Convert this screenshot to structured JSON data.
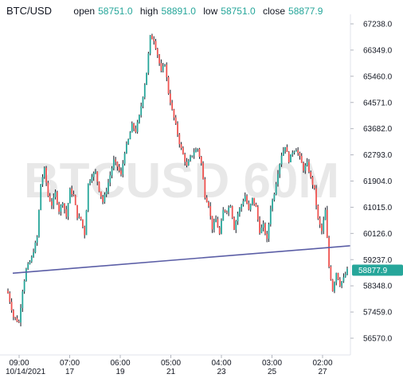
{
  "symbol": "BTC/USD",
  "ohlc": {
    "open_label": "open",
    "open": "58751.0",
    "high_label": "high",
    "high": "58891.0",
    "low_label": "low",
    "low": "58751.0",
    "close_label": "close",
    "close": "58877.9"
  },
  "watermark": "BTCUSD 60M",
  "colors": {
    "up": "#26a69a",
    "down": "#ef5350",
    "bar": "#131722",
    "trendline": "#5b5ea6",
    "price_tag": "#26a69a"
  },
  "chart_data": {
    "type": "candlestick",
    "y_ticks": [
      67238.0,
      66349.0,
      65460.0,
      64571.0,
      63682.0,
      62793.0,
      61904.0,
      61015.0,
      60126.0,
      59237.0,
      58348.0,
      57459.0,
      56570.0
    ],
    "ylim": [
      56570.0,
      67238.0
    ],
    "x_ticks": [
      {
        "time": "09:00",
        "date": "10/14/2021"
      },
      {
        "time": "07:00",
        "date": "17"
      },
      {
        "time": "06:00",
        "date": "19"
      },
      {
        "time": "05:00",
        "date": "21"
      },
      {
        "time": "04:00",
        "date": "23"
      },
      {
        "time": "03:00",
        "date": "25"
      },
      {
        "time": "02:00",
        "date": "27"
      }
    ],
    "last_price": "58877.9",
    "price_path": [
      [
        0,
        58100
      ],
      [
        3,
        57300
      ],
      [
        6,
        57100
      ],
      [
        8,
        58200
      ],
      [
        10,
        58900
      ],
      [
        13,
        59300
      ],
      [
        16,
        60000
      ],
      [
        18,
        61800
      ],
      [
        20,
        62300
      ],
      [
        22,
        61400
      ],
      [
        24,
        61100
      ],
      [
        26,
        61500
      ],
      [
        28,
        60900
      ],
      [
        30,
        61200
      ],
      [
        32,
        60700
      ],
      [
        34,
        61600
      ],
      [
        36,
        61400
      ],
      [
        38,
        60700
      ],
      [
        40,
        60600
      ],
      [
        42,
        60100
      ],
      [
        44,
        61800
      ],
      [
        46,
        62100
      ],
      [
        48,
        62200
      ],
      [
        50,
        61600
      ],
      [
        52,
        61200
      ],
      [
        54,
        61600
      ],
      [
        56,
        62100
      ],
      [
        58,
        62600
      ],
      [
        60,
        62400
      ],
      [
        62,
        62100
      ],
      [
        64,
        62900
      ],
      [
        66,
        63300
      ],
      [
        68,
        63800
      ],
      [
        70,
        63600
      ],
      [
        72,
        64100
      ],
      [
        74,
        64800
      ],
      [
        76,
        65600
      ],
      [
        78,
        66800
      ],
      [
        80,
        66700
      ],
      [
        82,
        66200
      ],
      [
        84,
        65600
      ],
      [
        86,
        65900
      ],
      [
        88,
        64900
      ],
      [
        90,
        64300
      ],
      [
        92,
        63800
      ],
      [
        94,
        63200
      ],
      [
        96,
        62800
      ],
      [
        98,
        62400
      ],
      [
        100,
        62700
      ],
      [
        102,
        62900
      ],
      [
        104,
        63000
      ],
      [
        106,
        62500
      ],
      [
        108,
        61400
      ],
      [
        110,
        61100
      ],
      [
        112,
        60300
      ],
      [
        114,
        60600
      ],
      [
        116,
        60100
      ],
      [
        118,
        60900
      ],
      [
        120,
        60900
      ],
      [
        122,
        61100
      ],
      [
        124,
        60300
      ],
      [
        126,
        60800
      ],
      [
        128,
        61100
      ],
      [
        130,
        61400
      ],
      [
        132,
        60900
      ],
      [
        134,
        61300
      ],
      [
        136,
        61000
      ],
      [
        138,
        60200
      ],
      [
        140,
        60400
      ],
      [
        142,
        59900
      ],
      [
        144,
        61000
      ],
      [
        146,
        61500
      ],
      [
        148,
        62200
      ],
      [
        150,
        62800
      ],
      [
        152,
        63100
      ],
      [
        154,
        62600
      ],
      [
        156,
        62900
      ],
      [
        158,
        63000
      ],
      [
        160,
        62700
      ],
      [
        162,
        62300
      ],
      [
        164,
        62500
      ],
      [
        166,
        62000
      ],
      [
        168,
        61600
      ],
      [
        170,
        60600
      ],
      [
        172,
        60200
      ],
      [
        174,
        60900
      ],
      [
        176,
        59000
      ],
      [
        178,
        58200
      ],
      [
        180,
        58800
      ],
      [
        182,
        58400
      ],
      [
        184,
        58600
      ],
      [
        186,
        58877.9
      ]
    ],
    "trendline": {
      "start": [
        0,
        58777
      ],
      "end": [
        186,
        59707
      ]
    }
  }
}
